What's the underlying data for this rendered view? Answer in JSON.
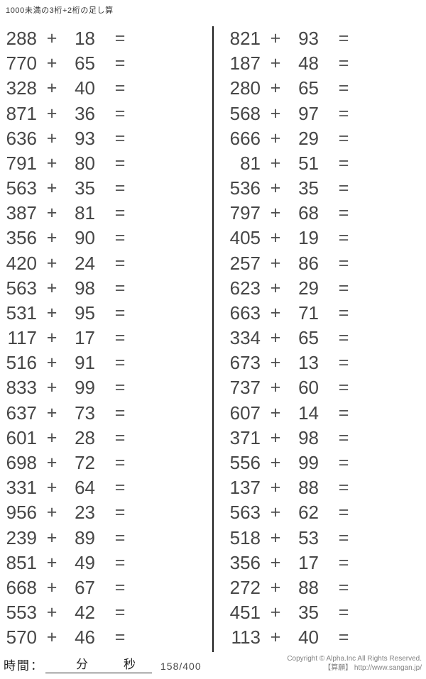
{
  "title": "1000未満の3桁+2桁の足し算",
  "symbols": {
    "plus": "+",
    "equals": "="
  },
  "columns": [
    {
      "name": "left",
      "problems": [
        {
          "a": "288",
          "b": "18"
        },
        {
          "a": "770",
          "b": "65"
        },
        {
          "a": "328",
          "b": "40"
        },
        {
          "a": "871",
          "b": "36"
        },
        {
          "a": "636",
          "b": "93"
        },
        {
          "a": "791",
          "b": "80"
        },
        {
          "a": "563",
          "b": "35"
        },
        {
          "a": "387",
          "b": "81"
        },
        {
          "a": "356",
          "b": "90"
        },
        {
          "a": "420",
          "b": "24"
        },
        {
          "a": "563",
          "b": "98"
        },
        {
          "a": "531",
          "b": "95"
        },
        {
          "a": "117",
          "b": "17"
        },
        {
          "a": "516",
          "b": "91"
        },
        {
          "a": "833",
          "b": "99"
        },
        {
          "a": "637",
          "b": "73"
        },
        {
          "a": "601",
          "b": "28"
        },
        {
          "a": "698",
          "b": "72"
        },
        {
          "a": "331",
          "b": "64"
        },
        {
          "a": "956",
          "b": "23"
        },
        {
          "a": "239",
          "b": "89"
        },
        {
          "a": "851",
          "b": "49"
        },
        {
          "a": "668",
          "b": "67"
        },
        {
          "a": "553",
          "b": "42"
        },
        {
          "a": "570",
          "b": "46"
        }
      ]
    },
    {
      "name": "right",
      "problems": [
        {
          "a": "821",
          "b": "93"
        },
        {
          "a": "187",
          "b": "48"
        },
        {
          "a": "280",
          "b": "65"
        },
        {
          "a": "568",
          "b": "97"
        },
        {
          "a": "666",
          "b": "29"
        },
        {
          "a": "81",
          "b": "51"
        },
        {
          "a": "536",
          "b": "35"
        },
        {
          "a": "797",
          "b": "68"
        },
        {
          "a": "405",
          "b": "19"
        },
        {
          "a": "257",
          "b": "86"
        },
        {
          "a": "623",
          "b": "29"
        },
        {
          "a": "663",
          "b": "71"
        },
        {
          "a": "334",
          "b": "65"
        },
        {
          "a": "673",
          "b": "13"
        },
        {
          "a": "737",
          "b": "60"
        },
        {
          "a": "607",
          "b": "14"
        },
        {
          "a": "371",
          "b": "98"
        },
        {
          "a": "556",
          "b": "99"
        },
        {
          "a": "137",
          "b": "88"
        },
        {
          "a": "563",
          "b": "62"
        },
        {
          "a": "518",
          "b": "53"
        },
        {
          "a": "356",
          "b": "17"
        },
        {
          "a": "272",
          "b": "88"
        },
        {
          "a": "451",
          "b": "35"
        },
        {
          "a": "113",
          "b": "40"
        }
      ]
    }
  ],
  "footer": {
    "time_label": "時間：",
    "minutes_label": "分",
    "seconds_label": "秒",
    "page_indicator": "158/400",
    "copyright_line1": "Copyright © Alpha.Inc All Rights Reserved.",
    "copyright_line2": "【算願】 http://www.sangan.jp/"
  }
}
